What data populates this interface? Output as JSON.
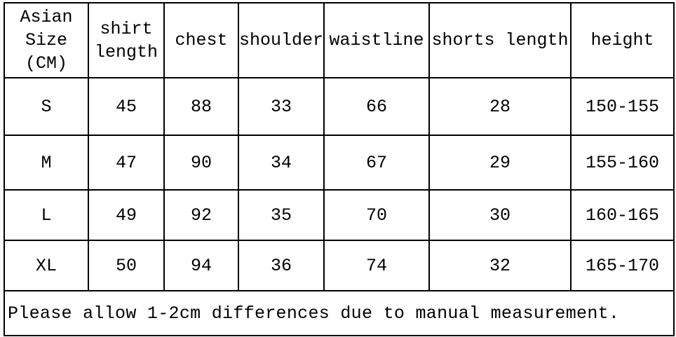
{
  "table": {
    "header": [
      "Asian\nSize\n(CM)",
      "shirt\nlength",
      "chest",
      "shoulder",
      "waistline",
      "shorts length",
      "height"
    ],
    "rows": [
      [
        "S",
        "45",
        "88",
        "33",
        "66",
        "28",
        "150-155"
      ],
      [
        "M",
        "47",
        "90",
        "34",
        "67",
        "29",
        "155-160"
      ],
      [
        "L",
        "49",
        "92",
        "35",
        "70",
        "30",
        "160-165"
      ],
      [
        "XL",
        "50",
        "94",
        "36",
        "74",
        "32",
        "165-170"
      ]
    ],
    "note": "Please allow 1-2cm differences due to manual measurement."
  }
}
